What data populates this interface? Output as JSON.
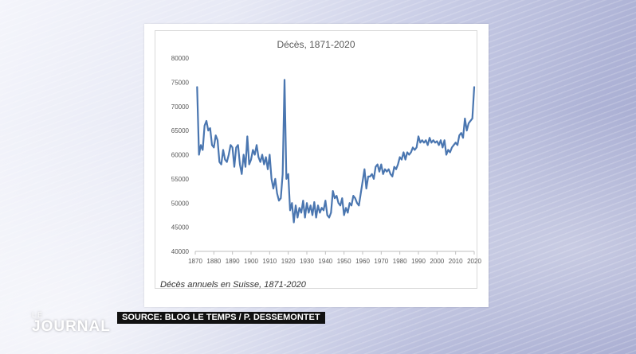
{
  "broadcast": {
    "logo_top": "LE",
    "logo_main": "JOURNAL",
    "source": "SOURCE: BLOG LE TEMPS / P. DESSEMONTET"
  },
  "card": {
    "caption": "Décès annuels en Suisse, 1871-2020"
  },
  "colors": {
    "line": "#4a76b0",
    "axis": "#bfbfbf",
    "tick_text": "#595959"
  },
  "chart_data": {
    "type": "line",
    "title": "Décès, 1871-2020",
    "xlabel": "",
    "ylabel": "",
    "xlim": [
      1870,
      2020
    ],
    "ylim": [
      40000,
      80000
    ],
    "grid": false,
    "x_ticks": [
      1870,
      1880,
      1890,
      1900,
      1910,
      1920,
      1930,
      1940,
      1950,
      1960,
      1970,
      1980,
      1990,
      2000,
      2010,
      2020
    ],
    "y_ticks": [
      40000,
      45000,
      50000,
      55000,
      60000,
      65000,
      70000,
      75000,
      80000
    ],
    "series": [
      {
        "name": "",
        "x": [
          1871,
          1872,
          1873,
          1874,
          1875,
          1876,
          1877,
          1878,
          1879,
          1880,
          1881,
          1882,
          1883,
          1884,
          1885,
          1886,
          1887,
          1888,
          1889,
          1890,
          1891,
          1892,
          1893,
          1894,
          1895,
          1896,
          1897,
          1898,
          1899,
          1900,
          1901,
          1902,
          1903,
          1904,
          1905,
          1906,
          1907,
          1908,
          1909,
          1910,
          1911,
          1912,
          1913,
          1914,
          1915,
          1916,
          1917,
          1918,
          1919,
          1920,
          1921,
          1922,
          1923,
          1924,
          1925,
          1926,
          1927,
          1928,
          1929,
          1930,
          1931,
          1932,
          1933,
          1934,
          1935,
          1936,
          1937,
          1938,
          1939,
          1940,
          1941,
          1942,
          1943,
          1944,
          1945,
          1946,
          1947,
          1948,
          1949,
          1950,
          1951,
          1952,
          1953,
          1954,
          1955,
          1956,
          1957,
          1958,
          1959,
          1960,
          1961,
          1962,
          1963,
          1964,
          1965,
          1966,
          1967,
          1968,
          1969,
          1970,
          1971,
          1972,
          1973,
          1974,
          1975,
          1976,
          1977,
          1978,
          1979,
          1980,
          1981,
          1982,
          1983,
          1984,
          1985,
          1986,
          1987,
          1988,
          1989,
          1990,
          1991,
          1992,
          1993,
          1994,
          1995,
          1996,
          1997,
          1998,
          1999,
          2000,
          2001,
          2002,
          2003,
          2004,
          2005,
          2006,
          2007,
          2008,
          2009,
          2010,
          2011,
          2012,
          2013,
          2014,
          2015,
          2016,
          2017,
          2018,
          2019,
          2020
        ],
        "values": [
          74000,
          60000,
          62000,
          61000,
          66000,
          67000,
          65000,
          65500,
          62000,
          61500,
          64000,
          63000,
          58500,
          58000,
          61000,
          59000,
          58500,
          60000,
          62000,
          61500,
          57500,
          61500,
          62000,
          58000,
          56000,
          60000,
          57500,
          63800,
          58000,
          59000,
          61000,
          60000,
          62000,
          59500,
          58500,
          60000,
          58000,
          59500,
          57000,
          60000,
          55000,
          53000,
          55000,
          52000,
          50500,
          51000,
          56000,
          75500,
          55000,
          56000,
          48500,
          50000,
          46000,
          49500,
          47000,
          49000,
          48000,
          50500,
          47000,
          50000,
          48000,
          49500,
          47500,
          50200,
          47000,
          49500,
          48000,
          49000,
          48500,
          50500,
          47500,
          47000,
          48000,
          52500,
          51000,
          51500,
          50000,
          49500,
          51000,
          47500,
          49000,
          48000,
          50000,
          49500,
          51500,
          51000,
          50000,
          49500,
          52000,
          54500,
          57000,
          53000,
          55500,
          55500,
          56000,
          55000,
          57500,
          58000,
          56500,
          58000,
          56000,
          57000,
          56500,
          57000,
          56000,
          55500,
          57500,
          57000,
          58000,
          59500,
          59000,
          60500,
          59000,
          60500,
          60000,
          60500,
          61500,
          61000,
          61500,
          63800,
          62500,
          63000,
          62500,
          63000,
          62000,
          63500,
          62500,
          63000,
          62500,
          62800,
          62000,
          63000,
          61500,
          63000,
          60000,
          61000,
          60500,
          61500,
          62000,
          62500,
          62000,
          64000,
          64500,
          63500,
          67500,
          65000,
          66500,
          67000,
          67500,
          74000
        ]
      }
    ]
  }
}
